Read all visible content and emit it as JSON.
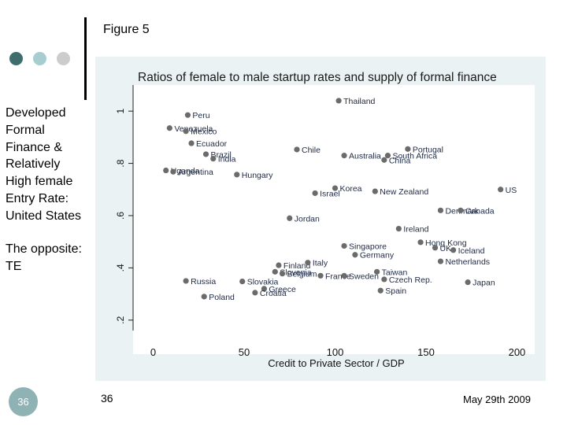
{
  "slide": {
    "figure_label": "Figure 5",
    "side_text_1": "Developed\nFormal\nFinance &\nRelatively\nHigh female\nEntry Rate:\nUnited States",
    "side_text_2": "The opposite:\nTE",
    "slide_badge": "36",
    "page_number": "36",
    "date": "May 29th 2009"
  },
  "colors": {
    "dot_dark": "#3f6d6e",
    "dot_mid": "#a8cdd0",
    "dot_light": "#cccccc",
    "chart_bg": "#eaf2f3",
    "plot_bg": "#ffffff",
    "marker": "#6b6b6b"
  },
  "chart_data": {
    "type": "scatter",
    "title": "Ratios of female to male startup rates and supply of formal finance",
    "xlabel": "Credit to Private Sector / GDP",
    "ylabel": "",
    "xlim": [
      -5,
      205
    ],
    "ylim": [
      0.16,
      1.1
    ],
    "xticks": [
      0,
      50,
      100,
      150,
      200
    ],
    "yticks": [
      0.2,
      0.4,
      0.6,
      0.8,
      1
    ],
    "ytick_labels": [
      ".2",
      ".4",
      ".6",
      ".8",
      "1"
    ],
    "grid": false,
    "points": [
      {
        "label": "Thailand",
        "x": 102,
        "y": 1.04
      },
      {
        "label": "Peru",
        "x": 19,
        "y": 0.985
      },
      {
        "label": "Venezuela",
        "x": 9,
        "y": 0.935
      },
      {
        "label": "Mexico",
        "x": 18,
        "y": 0.923
      },
      {
        "label": "Ecuador",
        "x": 21,
        "y": 0.877
      },
      {
        "label": "Brazil",
        "x": 29,
        "y": 0.835
      },
      {
        "label": "India",
        "x": 33,
        "y": 0.818
      },
      {
        "label": "Uganda",
        "x": 7,
        "y": 0.773
      },
      {
        "label": "Argentina",
        "x": 11,
        "y": 0.768
      },
      {
        "label": "Hungary",
        "x": 46,
        "y": 0.757
      },
      {
        "label": "Chile",
        "x": 79,
        "y": 0.853
      },
      {
        "label": "Australia",
        "x": 105,
        "y": 0.83
      },
      {
        "label": "South Africa",
        "x": 129,
        "y": 0.83
      },
      {
        "label": "Portugal",
        "x": 140,
        "y": 0.855
      },
      {
        "label": "China",
        "x": 127,
        "y": 0.813
      },
      {
        "label": "US",
        "x": 191,
        "y": 0.7
      },
      {
        "label": "Korea",
        "x": 100,
        "y": 0.705
      },
      {
        "label": "Israel",
        "x": 89,
        "y": 0.686
      },
      {
        "label": "New Zealand",
        "x": 122,
        "y": 0.693
      },
      {
        "label": "Denmark",
        "x": 158,
        "y": 0.62
      },
      {
        "label": "Canada",
        "x": 169,
        "y": 0.62
      },
      {
        "label": "Ireland",
        "x": 135,
        "y": 0.55
      },
      {
        "label": "Jordan",
        "x": 75,
        "y": 0.59
      },
      {
        "label": "Hong Kong",
        "x": 147,
        "y": 0.498
      },
      {
        "label": "UK",
        "x": 155,
        "y": 0.477
      },
      {
        "label": "Iceland",
        "x": 165,
        "y": 0.468
      },
      {
        "label": "Singapore",
        "x": 105,
        "y": 0.484
      },
      {
        "label": "Germany",
        "x": 111,
        "y": 0.45
      },
      {
        "label": "Netherlands",
        "x": 158,
        "y": 0.425
      },
      {
        "label": "Finland",
        "x": 69,
        "y": 0.41
      },
      {
        "label": "Italy",
        "x": 85,
        "y": 0.42
      },
      {
        "label": "Slovenia",
        "x": 67,
        "y": 0.385
      },
      {
        "label": "Belgium",
        "x": 71,
        "y": 0.378
      },
      {
        "label": "France",
        "x": 92,
        "y": 0.37
      },
      {
        "label": "Sweden",
        "x": 105,
        "y": 0.37
      },
      {
        "label": "Taiwan",
        "x": 123,
        "y": 0.385
      },
      {
        "label": "Czech Rep.",
        "x": 127,
        "y": 0.356
      },
      {
        "label": "Japan",
        "x": 173,
        "y": 0.345
      },
      {
        "label": "Spain",
        "x": 125,
        "y": 0.313
      },
      {
        "label": "Russia",
        "x": 18,
        "y": 0.35
      },
      {
        "label": "Slovakia",
        "x": 49,
        "y": 0.348
      },
      {
        "label": "Greece",
        "x": 61,
        "y": 0.32
      },
      {
        "label": "Croatia",
        "x": 56,
        "y": 0.305
      },
      {
        "label": "Poland",
        "x": 28,
        "y": 0.29
      }
    ]
  }
}
